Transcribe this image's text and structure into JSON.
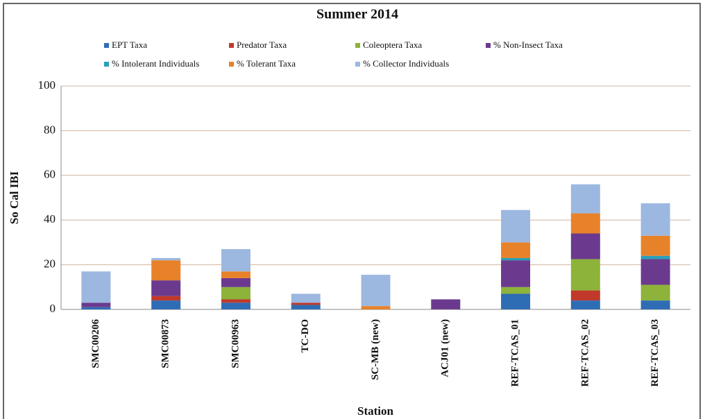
{
  "chart_data": {
    "type": "bar",
    "stacked": true,
    "title": "Summer 2014",
    "x_label": "Station",
    "y_label": "So Cal IBI",
    "categories": [
      "SMC00206",
      "SMC00873",
      "SMC00963",
      "TC-DO",
      "SC-MB (new)",
      "ACJ01 (new)",
      "REF-TCAS_01",
      "REF-TCAS_02",
      "REF-TCAS_03"
    ],
    "series": [
      {
        "name": "EPT Taxa",
        "color": "#2e6db4",
        "values": [
          1,
          4,
          3,
          2,
          0,
          0,
          7,
          4,
          4
        ]
      },
      {
        "name": "Predator Taxa",
        "color": "#c0392b",
        "values": [
          0,
          2,
          1.5,
          1,
          0,
          0,
          0,
          4.5,
          0
        ]
      },
      {
        "name": "Coleoptera Taxa",
        "color": "#8db33a",
        "values": [
          0,
          0,
          5.5,
          0,
          0,
          0,
          3,
          14,
          7
        ]
      },
      {
        "name": "% Non-Insect Taxa",
        "color": "#6b3a8e",
        "values": [
          2,
          7,
          4,
          0,
          0,
          4.5,
          12,
          11.5,
          11.5
        ]
      },
      {
        "name": "% Intolerant Individuals",
        "color": "#2aa0b8",
        "values": [
          0,
          0,
          0,
          0,
          0,
          0,
          1,
          0,
          1.5
        ]
      },
      {
        "name": "% Tolerant Taxa",
        "color": "#e8822a",
        "values": [
          0,
          9,
          3,
          0,
          1.5,
          0,
          7,
          9,
          9
        ]
      },
      {
        "name": "% Collector Individuals",
        "color": "#9cb8e0",
        "values": [
          14,
          1,
          10,
          4,
          14,
          0,
          14.5,
          13,
          14.5
        ]
      }
    ],
    "ylim": [
      0,
      100
    ],
    "yticks": [
      0,
      20,
      40,
      60,
      80,
      100
    ],
    "grid": true,
    "grid_color": "#d2b49c"
  }
}
